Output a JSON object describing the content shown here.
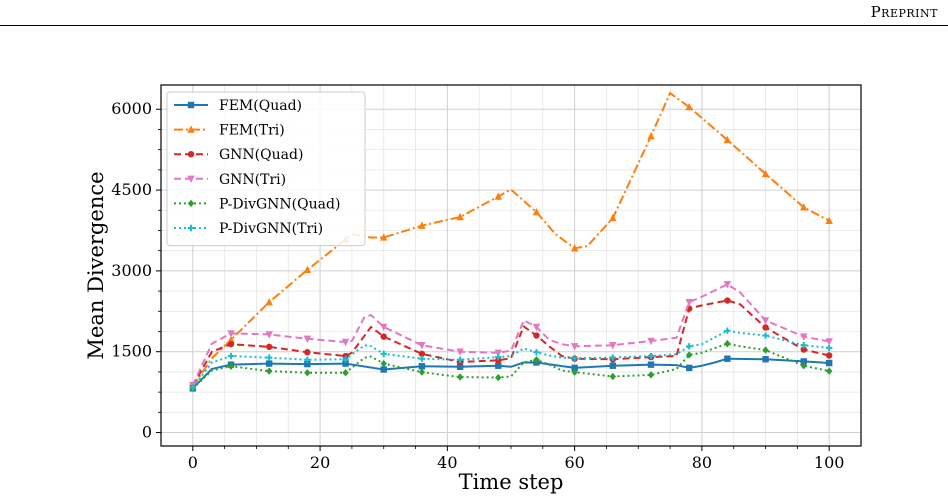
{
  "header": {
    "label": "Preprint"
  },
  "chart_data": {
    "type": "line",
    "title": "",
    "xlabel": "Time step",
    "ylabel": "Mean Divergence",
    "xlim": [
      -5,
      105
    ],
    "ylim": [
      -250,
      6450
    ],
    "xticks": [
      0,
      20,
      40,
      60,
      80,
      100
    ],
    "yticks": [
      0,
      1500,
      3000,
      4500,
      6000
    ],
    "grid": true,
    "legend_position": "upper-left",
    "series": [
      {
        "name": "FEM(Quad)",
        "color": "#1f77b4",
        "dash": "solid",
        "marker": "square",
        "x": [
          0,
          3,
          6,
          12,
          18,
          24,
          30,
          36,
          42,
          48,
          50,
          52,
          54,
          60,
          66,
          72,
          76,
          78,
          80,
          82,
          84,
          90,
          96,
          100
        ],
        "y": [
          820,
          1180,
          1260,
          1280,
          1270,
          1280,
          1170,
          1230,
          1220,
          1240,
          1220,
          1300,
          1300,
          1200,
          1240,
          1260,
          1250,
          1200,
          1240,
          1300,
          1370,
          1360,
          1320,
          1290
        ]
      },
      {
        "name": "FEM(Tri)",
        "color": "#ff7f0e",
        "dash": "dashdot",
        "marker": "triangle-up",
        "x": [
          0,
          3,
          6,
          12,
          18,
          24,
          25,
          28,
          30,
          36,
          42,
          48,
          50,
          54,
          57,
          60,
          62,
          66,
          72,
          75,
          78,
          84,
          90,
          96,
          100
        ],
        "y": [
          850,
          1380,
          1720,
          2420,
          3020,
          3580,
          3680,
          3620,
          3620,
          3840,
          4000,
          4380,
          4510,
          4090,
          3680,
          3420,
          3460,
          3980,
          5500,
          6300,
          6040,
          5430,
          4800,
          4180,
          3930
        ]
      },
      {
        "name": "GNN(Quad)",
        "color": "#d62728",
        "dash": "dashed",
        "marker": "circle",
        "x": [
          0,
          3,
          6,
          12,
          18,
          24,
          25,
          27,
          28,
          30,
          36,
          42,
          48,
          50,
          52,
          54,
          56,
          58,
          60,
          66,
          72,
          76,
          78,
          80,
          84,
          86,
          90,
          96,
          100
        ],
        "y": [
          860,
          1500,
          1640,
          1590,
          1490,
          1420,
          1480,
          1800,
          1960,
          1780,
          1460,
          1310,
          1340,
          1380,
          1970,
          1800,
          1600,
          1420,
          1370,
          1360,
          1400,
          1420,
          2300,
          2360,
          2450,
          2380,
          1950,
          1540,
          1430
        ]
      },
      {
        "name": "GNN(Tri)",
        "color": "#e377c2",
        "dash": "dashed",
        "marker": "triangle-down",
        "x": [
          0,
          3,
          6,
          12,
          18,
          24,
          25,
          27,
          28,
          30,
          36,
          42,
          48,
          50,
          52,
          54,
          56,
          58,
          60,
          66,
          72,
          76,
          78,
          80,
          84,
          86,
          90,
          96,
          100
        ],
        "y": [
          880,
          1650,
          1840,
          1820,
          1740,
          1680,
          1700,
          2150,
          2180,
          1960,
          1620,
          1500,
          1480,
          1520,
          2080,
          1960,
          1720,
          1640,
          1600,
          1620,
          1700,
          1760,
          2420,
          2520,
          2750,
          2600,
          2080,
          1780,
          1690
        ]
      },
      {
        "name": "P-DivGNN(Quad)",
        "color": "#2ca02c",
        "dash": "dotted",
        "marker": "diamond",
        "x": [
          0,
          3,
          6,
          12,
          18,
          24,
          27,
          28,
          30,
          36,
          42,
          48,
          50,
          52,
          54,
          56,
          58,
          60,
          66,
          72,
          76,
          78,
          80,
          84,
          86,
          90,
          96,
          100
        ],
        "y": [
          820,
          1150,
          1230,
          1140,
          1110,
          1110,
          1390,
          1410,
          1280,
          1120,
          1030,
          1020,
          1040,
          1300,
          1350,
          1260,
          1150,
          1120,
          1040,
          1070,
          1180,
          1440,
          1480,
          1650,
          1600,
          1530,
          1240,
          1140
        ]
      },
      {
        "name": "P-DivGNN(Tri)",
        "color": "#17becf",
        "dash": "dotted",
        "marker": "plus",
        "x": [
          0,
          3,
          6,
          12,
          18,
          24,
          27,
          28,
          30,
          36,
          42,
          48,
          50,
          52,
          54,
          56,
          58,
          60,
          66,
          72,
          76,
          78,
          80,
          84,
          86,
          90,
          96,
          100
        ],
        "y": [
          840,
          1300,
          1420,
          1390,
          1350,
          1360,
          1620,
          1600,
          1460,
          1370,
          1350,
          1400,
          1420,
          1560,
          1490,
          1430,
          1390,
          1380,
          1390,
          1420,
          1450,
          1600,
          1640,
          1890,
          1850,
          1800,
          1620,
          1570
        ]
      }
    ]
  }
}
